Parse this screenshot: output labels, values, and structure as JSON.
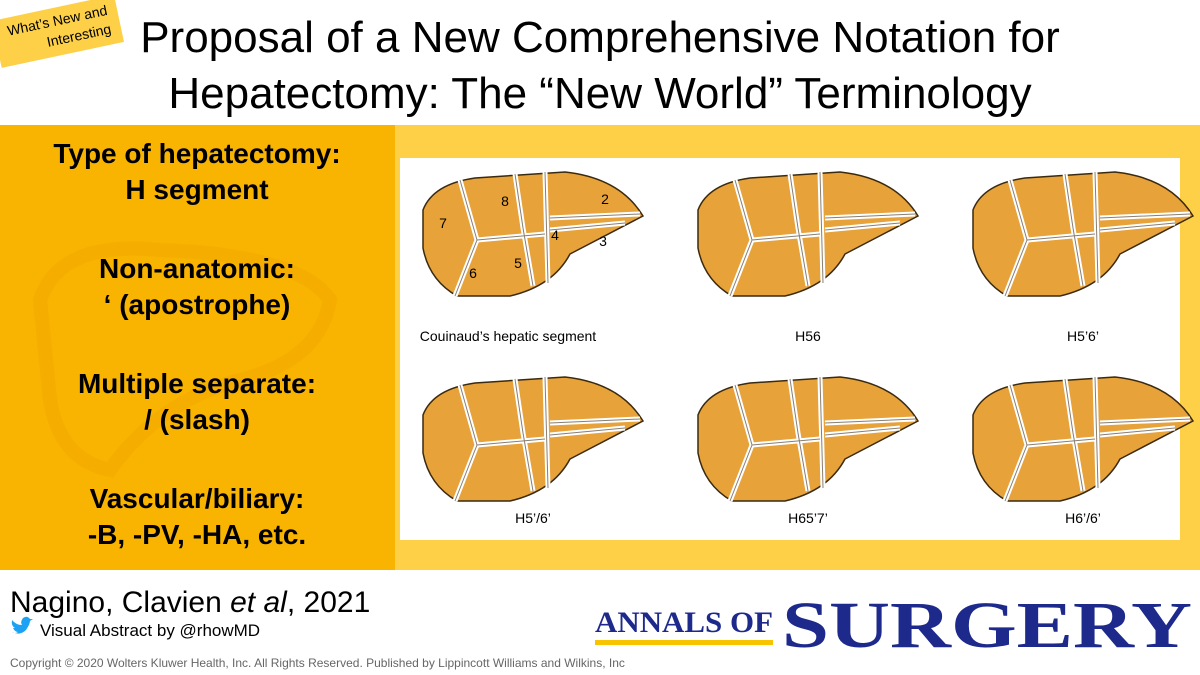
{
  "badge": [
    "What’s New and",
    "Interesting"
  ],
  "title": [
    "Proposal of a New Comprehensive Notation for",
    "Hepatectomy: The “New World” Terminology"
  ],
  "notation": [
    {
      "heading": "Type of hepatectomy:",
      "detail": "H segment"
    },
    {
      "heading": "Non-anatomic:",
      "detail": "‘ (apostrophe)"
    },
    {
      "heading": "Multiple separate:",
      "detail": "/ (slash)"
    },
    {
      "heading": "Vascular/biliary:",
      "detail": "-B, -PV, -HA, etc."
    }
  ],
  "figures": [
    {
      "caption": "Couinaud’s hepatic segment",
      "segments": [
        "8",
        "2",
        "7",
        "4",
        "3",
        "5",
        "6"
      ]
    },
    {
      "caption": "H56"
    },
    {
      "caption": "H5’6’"
    },
    {
      "caption": "H5’/6’"
    },
    {
      "caption": "H65’7’"
    },
    {
      "caption": "H6’/6’"
    }
  ],
  "citation": [
    "Nagino, Clavien ",
    "et al",
    ", 2021"
  ],
  "credit": "Visual Abstract by @rhowMD",
  "journal": [
    "ANNALS OF",
    "SURGERY"
  ],
  "copyright": "Copyright © 2020 Wolters Kluwer Health, Inc. All Rights Reserved. Published by Lippincott Williams and Wilkins, Inc"
}
